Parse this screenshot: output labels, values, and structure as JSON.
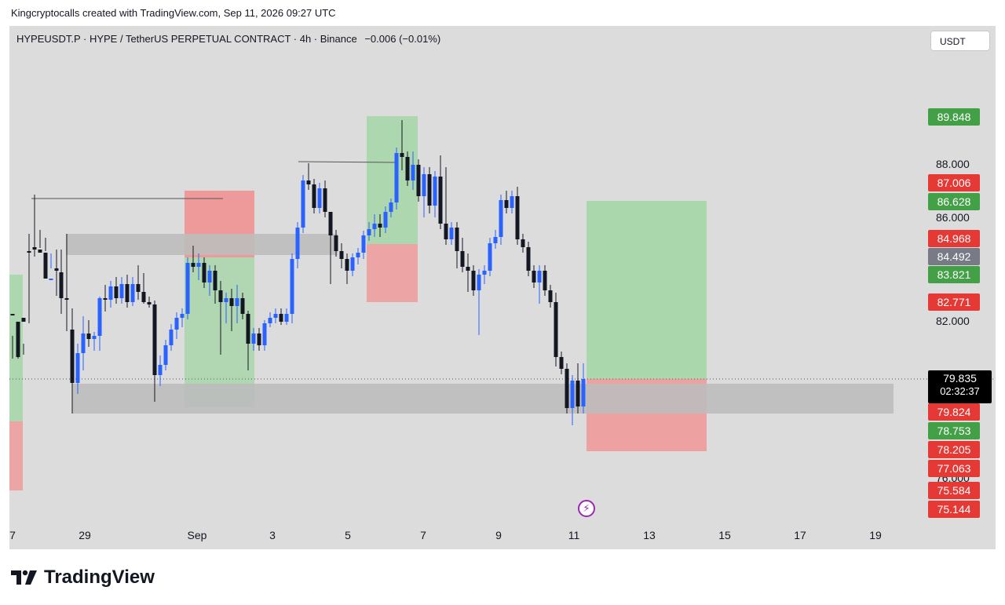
{
  "credit": "Kingcryptocalls created with TradingView.com, Sep 11, 2026 09:27 UTC",
  "header": {
    "symbol": "HYPEUSDT.P · HYPE / TetherUS PERPETUAL CONTRACT · 4h · Binance",
    "change": "−0.006 (−0.01%)"
  },
  "currency": "USDT",
  "price_axis": {
    "labels": [
      "88.000",
      "86.000",
      "82.000",
      "76.000"
    ],
    "tags": [
      {
        "value": "89.848",
        "color": "#43a047"
      },
      {
        "value": "87.006",
        "color": "#e53935"
      },
      {
        "value": "86.628",
        "color": "#43a047"
      },
      {
        "value": "84.968",
        "color": "#e53935"
      },
      {
        "value": "84.492",
        "color": "#787b86"
      },
      {
        "value": "83.821",
        "color": "#43a047"
      },
      {
        "value": "82.771",
        "color": "#e53935"
      },
      {
        "value": "79.824",
        "color": "#e53935"
      },
      {
        "value": "78.753",
        "color": "#43a047"
      },
      {
        "value": "78.205",
        "color": "#e53935"
      },
      {
        "value": "77.063",
        "color": "#e53935"
      },
      {
        "value": "75.584",
        "color": "#e53935"
      },
      {
        "value": "75.144",
        "color": "#e53935"
      }
    ],
    "last_price": "79.835",
    "timer": "02:32:37"
  },
  "time_axis": [
    "7",
    "29",
    "Sep",
    "3",
    "5",
    "7",
    "9",
    "11",
    "13",
    "15",
    "17",
    "19"
  ],
  "brand": "TradingView",
  "colors": {
    "bull": "#2962ff",
    "bear": "#131722",
    "zone_green": "#a5d6a7",
    "zone_red": "#ef9a9a",
    "zone_gray": "#bdbdbd"
  }
}
